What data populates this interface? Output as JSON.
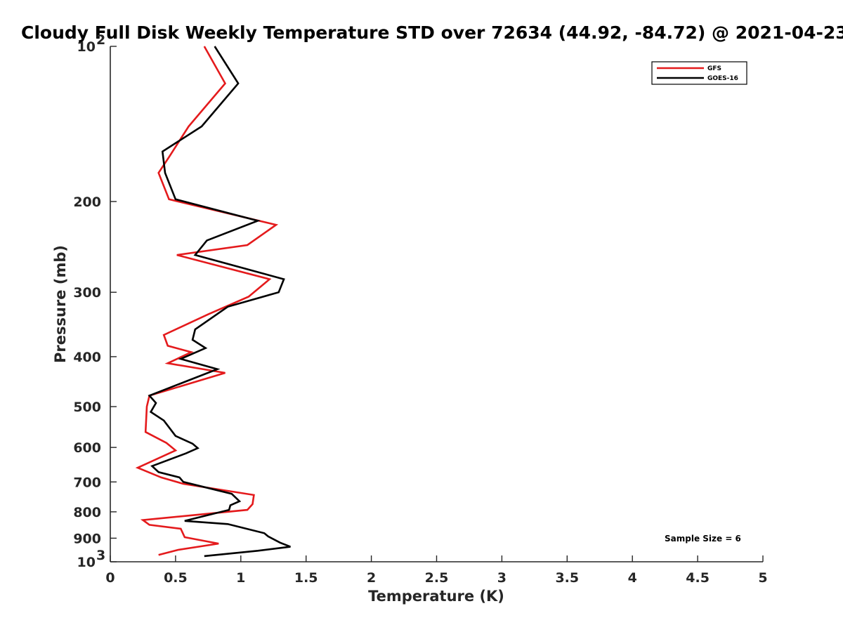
{
  "chart_data": {
    "type": "line",
    "title": "Cloudy Full Disk Weekly Temperature STD over 72634 (44.92, -84.72) @ 2021-04-23",
    "xlabel": "Temperature (K)",
    "ylabel": "Pressure (mb)",
    "xlim": [
      0,
      5
    ],
    "ylim": [
      1000,
      100
    ],
    "yscale": "log",
    "y_reversed": true,
    "grid": false,
    "legend_position": "top-right",
    "x_ticks": [
      {
        "value": 0,
        "label": "0"
      },
      {
        "value": 0.5,
        "label": "0.5"
      },
      {
        "value": 1,
        "label": "1"
      },
      {
        "value": 1.5,
        "label": "1.5"
      },
      {
        "value": 2,
        "label": "2"
      },
      {
        "value": 2.5,
        "label": "2.5"
      },
      {
        "value": 3,
        "label": "3"
      },
      {
        "value": 3.5,
        "label": "3.5"
      },
      {
        "value": 4,
        "label": "4"
      },
      {
        "value": 4.5,
        "label": "4.5"
      },
      {
        "value": 5,
        "label": "5"
      }
    ],
    "y_ticks": [
      {
        "value": 100,
        "label": "10",
        "exp": "2"
      },
      {
        "value": 200,
        "label": "200"
      },
      {
        "value": 300,
        "label": "300"
      },
      {
        "value": 400,
        "label": "400"
      },
      {
        "value": 500,
        "label": "500"
      },
      {
        "value": 600,
        "label": "600"
      },
      {
        "value": 700,
        "label": "700"
      },
      {
        "value": 800,
        "label": "800"
      },
      {
        "value": 900,
        "label": "900"
      },
      {
        "value": 1000,
        "label": "10",
        "exp": "3"
      }
    ],
    "annotation": "Sample Size = 6",
    "series": [
      {
        "name": "GFS",
        "color": "#e41a1c",
        "points": [
          [
            0.72,
            100
          ],
          [
            0.88,
            118
          ],
          [
            0.6,
            143
          ],
          [
            0.45,
            164
          ],
          [
            0.37,
            176
          ],
          [
            0.45,
            198
          ],
          [
            1.27,
            222
          ],
          [
            1.05,
            243
          ],
          [
            0.51,
            254
          ],
          [
            1.22,
            283
          ],
          [
            1.06,
            306
          ],
          [
            0.75,
            331
          ],
          [
            0.41,
            363
          ],
          [
            0.44,
            381
          ],
          [
            0.62,
            392
          ],
          [
            0.44,
            412
          ],
          [
            0.88,
            430
          ],
          [
            0.3,
            476
          ],
          [
            0.28,
            500
          ],
          [
            0.27,
            560
          ],
          [
            0.43,
            588
          ],
          [
            0.5,
            608
          ],
          [
            0.21,
            657
          ],
          [
            0.39,
            686
          ],
          [
            0.56,
            706
          ],
          [
            1.1,
            742
          ],
          [
            1.09,
            773
          ],
          [
            1.05,
            793
          ],
          [
            0.25,
            830
          ],
          [
            0.3,
            848
          ],
          [
            0.54,
            863
          ],
          [
            0.57,
            896
          ],
          [
            0.83,
            922
          ],
          [
            0.52,
            948
          ],
          [
            0.37,
            970
          ]
        ]
      },
      {
        "name": "GOES-16",
        "color": "#000000",
        "points": [
          [
            0.8,
            100
          ],
          [
            0.98,
            118
          ],
          [
            0.7,
            143
          ],
          [
            0.4,
            160
          ],
          [
            0.42,
            176
          ],
          [
            0.5,
            198
          ],
          [
            1.13,
            218
          ],
          [
            0.74,
            238
          ],
          [
            0.65,
            254
          ],
          [
            1.33,
            283
          ],
          [
            1.29,
            300
          ],
          [
            0.9,
            320
          ],
          [
            0.65,
            354
          ],
          [
            0.63,
            371
          ],
          [
            0.73,
            385
          ],
          [
            0.54,
            404
          ],
          [
            0.82,
            423
          ],
          [
            0.3,
            476
          ],
          [
            0.35,
            492
          ],
          [
            0.31,
            512
          ],
          [
            0.41,
            532
          ],
          [
            0.5,
            570
          ],
          [
            0.63,
            590
          ],
          [
            0.67,
            602
          ],
          [
            0.58,
            616
          ],
          [
            0.32,
            652
          ],
          [
            0.37,
            670
          ],
          [
            0.53,
            686
          ],
          [
            0.56,
            700
          ],
          [
            0.93,
            738
          ],
          [
            0.99,
            763
          ],
          [
            0.92,
            777
          ],
          [
            0.91,
            793
          ],
          [
            0.57,
            833
          ],
          [
            0.9,
            845
          ],
          [
            1.18,
            880
          ],
          [
            1.21,
            893
          ],
          [
            1.3,
            918
          ],
          [
            1.38,
            935
          ],
          [
            1.13,
            952
          ],
          [
            0.72,
            975
          ]
        ]
      }
    ]
  }
}
